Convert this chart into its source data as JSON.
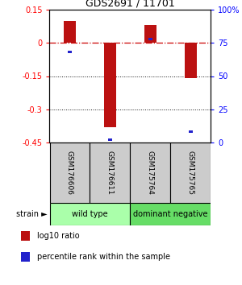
{
  "title": "GDS2691 / 11701",
  "samples": [
    "GSM176606",
    "GSM176611",
    "GSM175764",
    "GSM175765"
  ],
  "log10_ratio": [
    0.1,
    -0.38,
    0.08,
    -0.16
  ],
  "percentile_rank": [
    68,
    2,
    78,
    8
  ],
  "groups": [
    {
      "label": "wild type",
      "samples": [
        0,
        1
      ],
      "color": "#aaffaa"
    },
    {
      "label": "dominant negative",
      "samples": [
        2,
        3
      ],
      "color": "#66dd66"
    }
  ],
  "ylim_left": [
    -0.45,
    0.15
  ],
  "ylim_right": [
    0,
    100
  ],
  "yticks_left": [
    0.15,
    0,
    -0.15,
    -0.3,
    -0.45
  ],
  "yticks_right": [
    100,
    75,
    50,
    25,
    0
  ],
  "bar_color": "#bb1111",
  "dot_color": "#2222cc",
  "zero_line_color": "#cc0000",
  "grid_color": "#111111",
  "background_color": "#ffffff",
  "label_bg_color": "#cccccc",
  "strain_label": "strain",
  "legend_red": "log10 ratio",
  "legend_blue": "percentile rank within the sample"
}
